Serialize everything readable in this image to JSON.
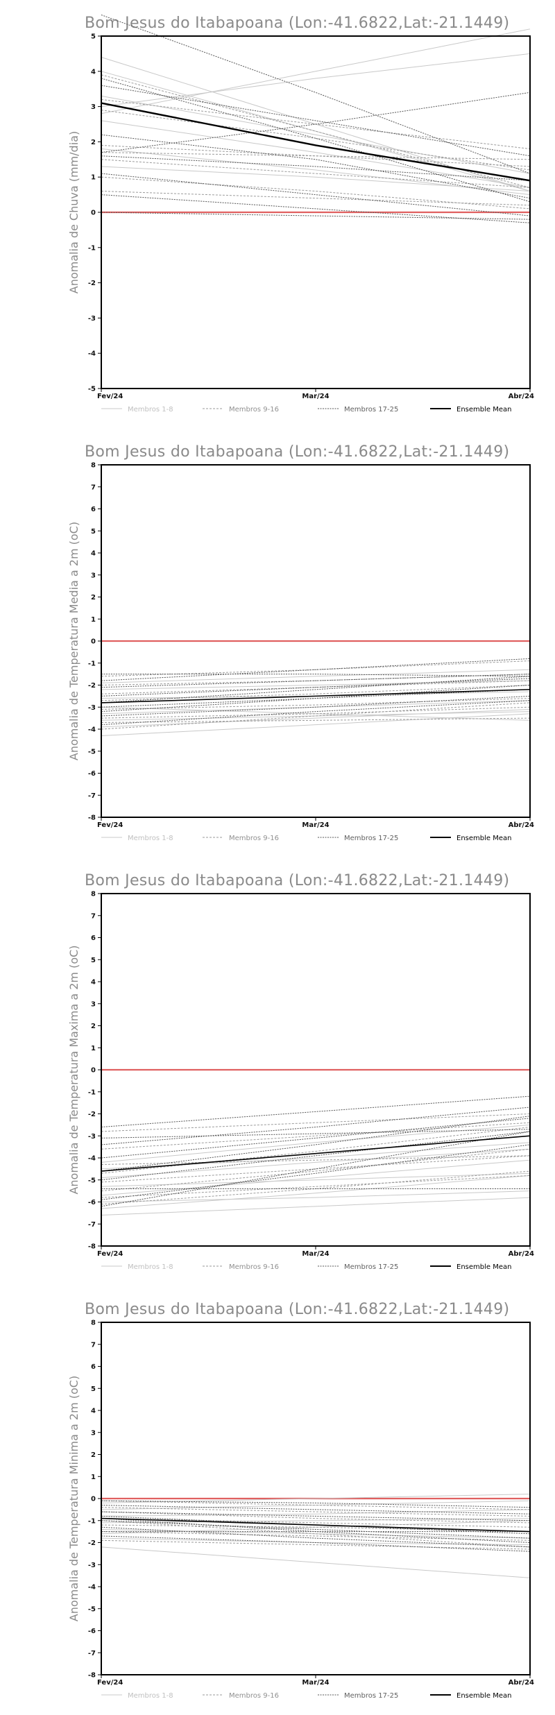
{
  "legend": {
    "entries": [
      {
        "label": "Membros 1-8",
        "color": "#c8c8c8",
        "dash": "none",
        "width": 1
      },
      {
        "label": "Membros 9-16",
        "color": "#9a9a9a",
        "dash": "3,2",
        "width": 1
      },
      {
        "label": "Membros 17-25",
        "color": "#555555",
        "dash": "2,1.5",
        "width": 1
      },
      {
        "label": "Ensemble Mean",
        "color": "#000000",
        "dash": "none",
        "width": 2
      }
    ]
  },
  "zero_line_color": "#e06060",
  "chart_data": [
    {
      "type": "line",
      "title": "Bom Jesus do Itabapoana (Lon:-41.6822,Lat:-21.1449)",
      "ylabel": "Anomalia de Chuva (mm/dia)",
      "categories": [
        "Fev/24",
        "Mar/24",
        "Abr/24"
      ],
      "ylim": [
        -5,
        5
      ],
      "yticks": [
        -5,
        -4,
        -3,
        -2,
        -1,
        0,
        1,
        2,
        3,
        4,
        5
      ],
      "legend_position": "bottom",
      "members_1_8": [
        [
          4.4,
          2.5,
          0.6
        ],
        [
          4.0,
          2.3,
          0.6
        ],
        [
          3.3,
          2.2,
          1.1
        ],
        [
          3.0,
          3.8,
          4.5
        ],
        [
          2.8,
          4.0,
          5.2
        ],
        [
          2.6,
          1.7,
          0.7
        ],
        [
          1.8,
          1.2,
          0.5
        ],
        [
          1.3,
          1.0,
          0.6
        ]
      ],
      "members_9_16": [
        [
          3.9,
          2.3,
          0.7
        ],
        [
          3.2,
          2.5,
          1.8
        ],
        [
          2.9,
          2.1,
          1.2
        ],
        [
          1.9,
          1.6,
          1.3
        ],
        [
          1.5,
          1.1,
          0.7
        ],
        [
          1.0,
          0.6,
          0.1
        ],
        [
          0.6,
          0.4,
          0.2
        ],
        [
          1.7,
          1.6,
          1.5
        ]
      ],
      "members_17_25": [
        [
          5.6,
          3.4,
          1.1
        ],
        [
          3.8,
          2.1,
          0.3
        ],
        [
          3.6,
          2.6,
          1.6
        ],
        [
          1.7,
          2.5,
          3.4
        ],
        [
          1.6,
          1.3,
          0.9
        ],
        [
          1.1,
          0.5,
          -0.1
        ],
        [
          0.5,
          0.1,
          -0.3
        ],
        [
          0.0,
          -0.1,
          -0.2
        ],
        [
          2.2,
          1.5,
          0.4
        ]
      ],
      "ensemble_mean": [
        3.1,
        1.9,
        0.9
      ]
    },
    {
      "type": "line",
      "title": "Bom Jesus do Itabapoana (Lon:-41.6822,Lat:-21.1449)",
      "ylabel": "Anomalia de Temperatura Media a 2m (oC)",
      "categories": [
        "Fev/24",
        "Mar/24",
        "Abr/24"
      ],
      "ylim": [
        -8,
        8
      ],
      "yticks": [
        -8,
        -7,
        -6,
        -5,
        -4,
        -3,
        -2,
        -1,
        0,
        1,
        2,
        3,
        4,
        5,
        6,
        7,
        8
      ],
      "legend_position": "bottom",
      "members_1_8": [
        [
          -4.3,
          -3.8,
          -3.3
        ],
        [
          -3.9,
          -3.5,
          -3.1
        ],
        [
          -3.6,
          -3.4,
          -3.2
        ],
        [
          -3.3,
          -3.0,
          -2.7
        ],
        [
          -3.0,
          -3.3,
          -3.6
        ],
        [
          -2.6,
          -2.5,
          -2.3
        ],
        [
          -2.2,
          -2.0,
          -1.8
        ],
        [
          -1.9,
          -1.6,
          -1.3
        ]
      ],
      "members_9_16": [
        [
          -4.0,
          -3.4,
          -2.8
        ],
        [
          -3.5,
          -3.3,
          -3.0
        ],
        [
          -3.1,
          -2.9,
          -2.6
        ],
        [
          -2.7,
          -2.4,
          -2.0
        ],
        [
          -2.4,
          -2.1,
          -1.8
        ],
        [
          -2.0,
          -1.8,
          -1.5
        ],
        [
          -1.6,
          -1.3,
          -0.9
        ],
        [
          -3.7,
          -3.6,
          -3.5
        ]
      ],
      "members_17_25": [
        [
          -3.8,
          -3.2,
          -2.7
        ],
        [
          -3.4,
          -3.0,
          -2.5
        ],
        [
          -3.0,
          -2.6,
          -2.2
        ],
        [
          -2.8,
          -2.2,
          -1.6
        ],
        [
          -2.5,
          -2.1,
          -1.7
        ],
        [
          -2.1,
          -1.8,
          -1.5
        ],
        [
          -1.8,
          -1.3,
          -0.8
        ],
        [
          -1.5,
          -1.5,
          -1.6
        ],
        [
          -3.2,
          -2.6,
          -2.0
        ]
      ],
      "ensemble_mean": [
        -2.8,
        -2.5,
        -2.2
      ]
    },
    {
      "type": "line",
      "title": "Bom Jesus do Itabapoana (Lon:-41.6822,Lat:-21.1449)",
      "ylabel": "Anomalia de Temperatura Maxima a 2m (oC)",
      "categories": [
        "Fev/24",
        "Mar/24",
        "Abr/24"
      ],
      "ylim": [
        -8,
        8
      ],
      "yticks": [
        -8,
        -7,
        -6,
        -5,
        -4,
        -3,
        -2,
        -1,
        0,
        1,
        2,
        3,
        4,
        5,
        6,
        7,
        8
      ],
      "legend_position": "bottom",
      "members_1_8": [
        [
          -6.6,
          -6.2,
          -5.8
        ],
        [
          -6.3,
          -5.6,
          -4.8
        ],
        [
          -6.0,
          -5.8,
          -5.5
        ],
        [
          -5.7,
          -4.9,
          -4.1
        ],
        [
          -5.3,
          -5.0,
          -4.7
        ],
        [
          -4.9,
          -4.2,
          -3.6
        ],
        [
          -4.5,
          -4.0,
          -3.3
        ],
        [
          -4.2,
          -3.3,
          -2.5
        ]
      ],
      "members_9_16": [
        [
          -6.1,
          -5.4,
          -4.6
        ],
        [
          -5.8,
          -5.3,
          -4.8
        ],
        [
          -5.5,
          -4.6,
          -3.6
        ],
        [
          -5.1,
          -4.5,
          -3.9
        ],
        [
          -4.7,
          -3.7,
          -2.6
        ],
        [
          -4.3,
          -4.1,
          -3.9
        ],
        [
          -3.6,
          -3.0,
          -2.4
        ],
        [
          -2.8,
          -2.4,
          -2.0
        ]
      ],
      "members_17_25": [
        [
          -6.2,
          -4.5,
          -2.8
        ],
        [
          -5.9,
          -4.7,
          -3.4
        ],
        [
          -5.4,
          -5.4,
          -5.4
        ],
        [
          -5.0,
          -3.9,
          -2.8
        ],
        [
          -4.6,
          -3.4,
          -2.1
        ],
        [
          -4.0,
          -3.1,
          -2.2
        ],
        [
          -3.4,
          -2.6,
          -1.7
        ],
        [
          -2.6,
          -1.9,
          -1.2
        ],
        [
          -3.1,
          -2.9,
          -2.7
        ]
      ],
      "ensemble_mean": [
        -4.6,
        -3.8,
        -3.0
      ]
    },
    {
      "type": "line",
      "title": "Bom Jesus do Itabapoana (Lon:-41.6822,Lat:-21.1449)",
      "ylabel": "Anomalia de Temperatura Minima a 2m (oC)",
      "categories": [
        "Fev/24",
        "Mar/24",
        "Abr/24"
      ],
      "ylim": [
        -8,
        8
      ],
      "yticks": [
        -8,
        -7,
        -6,
        -5,
        -4,
        -3,
        -2,
        -1,
        0,
        1,
        2,
        3,
        4,
        5,
        6,
        7,
        8
      ],
      "legend_position": "bottom",
      "members_1_8": [
        [
          -2.2,
          -2.9,
          -3.6
        ],
        [
          -1.8,
          -2.0,
          -2.1
        ],
        [
          -1.4,
          -1.6,
          -1.8
        ],
        [
          -1.1,
          -1.0,
          -0.9
        ],
        [
          -0.8,
          -0.7,
          -0.5
        ],
        [
          -0.5,
          -0.3,
          -0.1
        ],
        [
          -0.2,
          0.0,
          0.2
        ],
        [
          -1.6,
          -1.3,
          -1.0
        ]
      ],
      "members_9_16": [
        [
          -1.9,
          -2.1,
          -2.3
        ],
        [
          -1.5,
          -1.7,
          -1.9
        ],
        [
          -1.2,
          -1.3,
          -1.5
        ],
        [
          -0.9,
          -1.1,
          -1.3
        ],
        [
          -0.6,
          -0.9,
          -1.1
        ],
        [
          -0.4,
          -0.6,
          -0.8
        ],
        [
          -0.1,
          -0.3,
          -0.5
        ],
        [
          -1.0,
          -1.6,
          -2.2
        ]
      ],
      "members_17_25": [
        [
          -1.7,
          -2.0,
          -2.4
        ],
        [
          -1.3,
          -1.8,
          -2.2
        ],
        [
          -1.0,
          -1.4,
          -1.8
        ],
        [
          -0.8,
          -1.2,
          -1.6
        ],
        [
          -0.6,
          -0.8,
          -1.0
        ],
        [
          -0.3,
          -0.5,
          -0.7
        ],
        [
          -0.1,
          -0.2,
          -0.4
        ],
        [
          -1.5,
          -1.5,
          -1.5
        ],
        [
          -0.9,
          -1.5,
          -2.0
        ]
      ],
      "ensemble_mean": [
        -0.9,
        -1.2,
        -1.5
      ]
    }
  ]
}
